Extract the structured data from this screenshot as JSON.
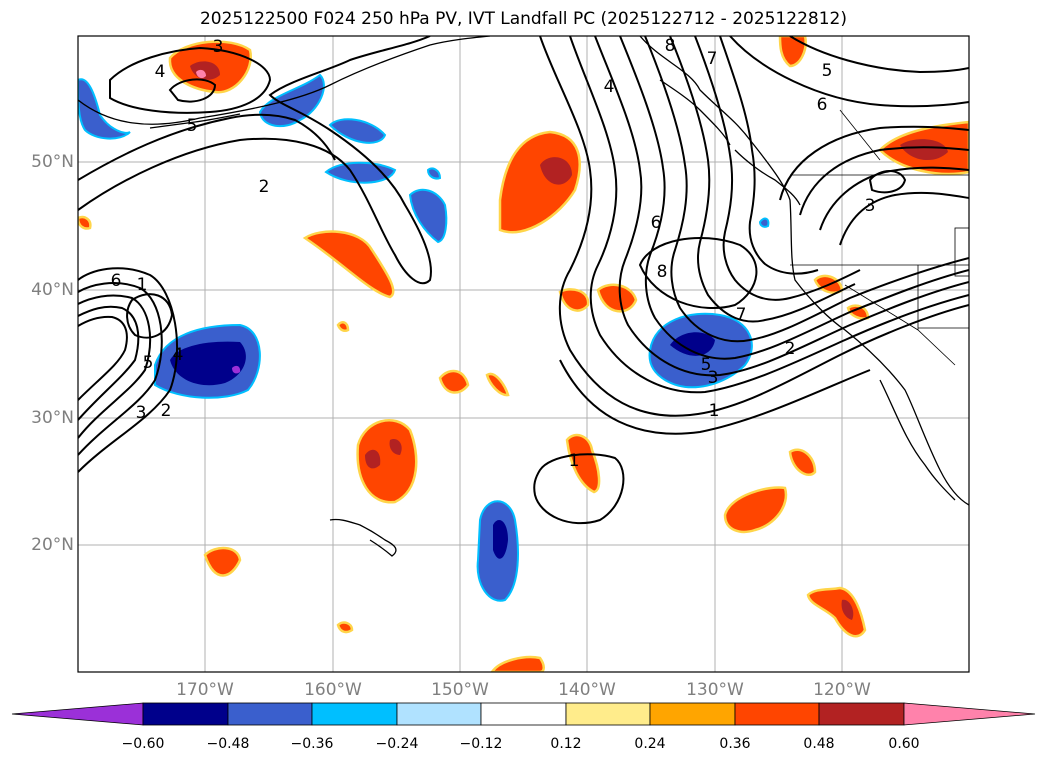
{
  "title": "2025122500 F024 250 hPa PV, IVT Landfall PC (2025122712 - 2025122812)",
  "map": {
    "lat_labels": [
      "50°N",
      "40°N",
      "30°N",
      "20°N"
    ],
    "lon_labels": [
      "170°W",
      "160°W",
      "150°W",
      "140°W",
      "130°W",
      "120°W"
    ],
    "contour_color": "#000000",
    "gridline_color": "#b0b0b0"
  },
  "colorbar": {
    "colors": [
      "#9b30d8",
      "#00008b",
      "#3a5fcd",
      "#00bfff",
      "#b0e2ff",
      "#ffffff",
      "#ffec8b",
      "#ffa500",
      "#ff4500",
      "#b22222",
      "#ff82ab"
    ],
    "tick_labels": [
      "−0.60",
      "−0.48",
      "−0.36",
      "−0.24",
      "−0.12",
      "0.12",
      "0.24",
      "0.36",
      "0.48",
      "0.60"
    ]
  },
  "contour_labels": [
    {
      "text": "3"
    },
    {
      "text": "4"
    },
    {
      "text": "5"
    },
    {
      "text": "2"
    },
    {
      "text": "6"
    },
    {
      "text": "1"
    },
    {
      "text": "5"
    },
    {
      "text": "4"
    },
    {
      "text": "3"
    },
    {
      "text": "2"
    },
    {
      "text": "4"
    },
    {
      "text": "6"
    },
    {
      "text": "8"
    },
    {
      "text": "8"
    },
    {
      "text": "7"
    },
    {
      "text": "7"
    },
    {
      "text": "5"
    },
    {
      "text": "3"
    },
    {
      "text": "2"
    },
    {
      "text": "1"
    },
    {
      "text": "1"
    },
    {
      "text": "5"
    },
    {
      "text": "6"
    },
    {
      "text": "3"
    }
  ]
}
